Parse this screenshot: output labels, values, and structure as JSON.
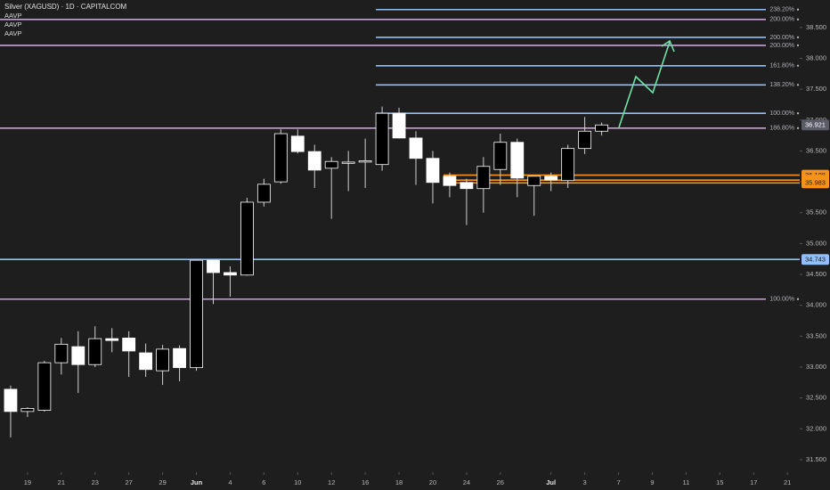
{
  "chart_data": {
    "type": "candlestick",
    "title": "Silver (XAGUSD) · 1D · CAPITALCOM",
    "indicators": [
      "AAVP",
      "AAVP",
      "AAVP"
    ],
    "x": [
      0,
      1,
      2,
      3,
      4,
      5,
      6,
      7,
      8,
      9,
      10,
      11,
      12,
      13,
      14,
      15,
      16,
      17,
      18,
      19,
      20,
      21,
      22,
      23,
      24,
      25,
      26,
      27,
      28,
      29,
      30,
      31,
      32,
      33,
      34,
      35
    ],
    "open": [
      32.64,
      32.28,
      32.3,
      33.07,
      33.33,
      33.04,
      33.46,
      33.47,
      33.23,
      32.94,
      33.3,
      32.99,
      34.73,
      34.53,
      34.49,
      35.67,
      36.0,
      36.74,
      36.49,
      36.22,
      36.3,
      36.32,
      36.28,
      37.11,
      36.71,
      36.38,
      36.09,
      35.99,
      35.89,
      36.2,
      36.64,
      35.94,
      36.09,
      36.02,
      36.54,
      36.82
    ],
    "high": [
      32.7,
      32.35,
      33.1,
      33.47,
      33.58,
      33.66,
      33.63,
      33.58,
      33.38,
      33.36,
      33.35,
      34.74,
      34.74,
      34.63,
      35.74,
      36.05,
      36.85,
      36.85,
      36.6,
      36.4,
      36.5,
      36.7,
      37.22,
      37.2,
      36.82,
      36.5,
      36.15,
      36.05,
      36.4,
      36.78,
      36.7,
      36.1,
      36.15,
      36.6,
      37.05,
      36.96
    ],
    "low": [
      31.86,
      32.19,
      32.28,
      32.88,
      32.58,
      33.0,
      33.24,
      32.84,
      32.84,
      32.71,
      32.77,
      32.94,
      34.02,
      34.14,
      34.48,
      35.6,
      35.97,
      36.46,
      35.9,
      35.4,
      35.85,
      35.9,
      36.18,
      36.7,
      35.95,
      35.65,
      35.75,
      35.3,
      35.5,
      35.95,
      35.75,
      35.45,
      35.85,
      35.9,
      36.45,
      36.75
    ],
    "close": [
      32.28,
      32.33,
      33.07,
      33.37,
      33.04,
      33.46,
      33.43,
      33.26,
      32.96,
      33.29,
      32.99,
      34.73,
      34.53,
      34.49,
      35.67,
      35.96,
      36.78,
      36.49,
      36.19,
      36.33,
      36.32,
      36.34,
      37.11,
      36.71,
      36.38,
      35.99,
      35.94,
      35.89,
      36.25,
      36.64,
      36.06,
      36.09,
      36.03,
      36.54,
      36.82,
      36.921
    ],
    "up_color": "#000000",
    "down_color": "#ffffff",
    "border_color": "#ffffff",
    "wick_color": "#d0d0d0",
    "xlim": [
      -0.63,
      46.73
    ],
    "xticks": [
      {
        "value": 1,
        "label": "19"
      },
      {
        "value": 3,
        "label": "21"
      },
      {
        "value": 5,
        "label": "23"
      },
      {
        "value": 7,
        "label": "27"
      },
      {
        "value": 9,
        "label": "29"
      },
      {
        "value": 11,
        "label": "Jun"
      },
      {
        "value": 13,
        "label": "4"
      },
      {
        "value": 15,
        "label": "6"
      },
      {
        "value": 17,
        "label": "10"
      },
      {
        "value": 19,
        "label": "12"
      },
      {
        "value": 21,
        "label": "16"
      },
      {
        "value": 23,
        "label": "18"
      },
      {
        "value": 25,
        "label": "20"
      },
      {
        "value": 27,
        "label": "24"
      },
      {
        "value": 29,
        "label": "26"
      },
      {
        "value": 32,
        "label": "Jul"
      },
      {
        "value": 34,
        "label": "3"
      },
      {
        "value": 36,
        "label": "7"
      },
      {
        "value": 38,
        "label": "9"
      },
      {
        "value": 40,
        "label": "11"
      },
      {
        "value": 42,
        "label": "15"
      },
      {
        "value": 44,
        "label": "17"
      },
      {
        "value": 46,
        "label": "21"
      }
    ],
    "ylim": [
      31.297,
      38.945
    ],
    "yticks": [
      {
        "value": 38.5,
        "label": "38.500"
      },
      {
        "value": 38,
        "label": "38.000"
      },
      {
        "value": 37.5,
        "label": "37.500"
      },
      {
        "value": 37,
        "label": "37.000"
      },
      {
        "value": 36.5,
        "label": "36.500"
      },
      {
        "value": 36,
        "label": "36.000"
      },
      {
        "value": 35.5,
        "label": "35.500"
      },
      {
        "value": 35,
        "label": "35.000"
      },
      {
        "value": 34.5,
        "label": "34.500"
      },
      {
        "value": 34,
        "label": "34.000"
      },
      {
        "value": 33.5,
        "label": "33.500"
      },
      {
        "value": 33,
        "label": "33.000"
      },
      {
        "value": 32.5,
        "label": "32.500"
      },
      {
        "value": 32,
        "label": "32.000"
      },
      {
        "value": 31.5,
        "label": "31.500"
      }
    ],
    "levels": [
      {
        "value": 38.79,
        "label": "238.20%",
        "color": "#90bff9",
        "x_start": 22
      },
      {
        "value": 38.63,
        "label": "200.00%",
        "color": "#c9a0dc"
      },
      {
        "value": 38.34,
        "label": "200.00%",
        "color": "#90bff9",
        "x_start": 22
      },
      {
        "value": 38.21,
        "label": "200.00%",
        "color": "#c9a0dc"
      },
      {
        "value": 37.88,
        "label": "161.80%",
        "color": "#90bff9",
        "x_start": 22
      },
      {
        "value": 37.57,
        "label": "138.20%",
        "color": "#90bff9",
        "x_start": 22
      },
      {
        "value": 37.11,
        "label": "100.00%",
        "color": "#90bff9",
        "x_start": 22
      },
      {
        "value": 36.87,
        "label": "186.80%",
        "color": "#c9a0dc"
      },
      {
        "value": 36.108,
        "color": "#f7931a",
        "x_start": 26,
        "tag": true
      },
      {
        "value": 36.027,
        "color": "#f7931a",
        "x_start": 26,
        "tag": true
      },
      {
        "value": 35.983,
        "color": "#f7931a",
        "x_start": 26,
        "tag": true
      },
      {
        "value": 34.743,
        "color": "#90bff9",
        "tag": true
      },
      {
        "value": 34.1,
        "label": "100.00%",
        "color": "#c9a0dc"
      }
    ],
    "last_price": 36.921,
    "last_price_color": "#5a5d66"
  }
}
